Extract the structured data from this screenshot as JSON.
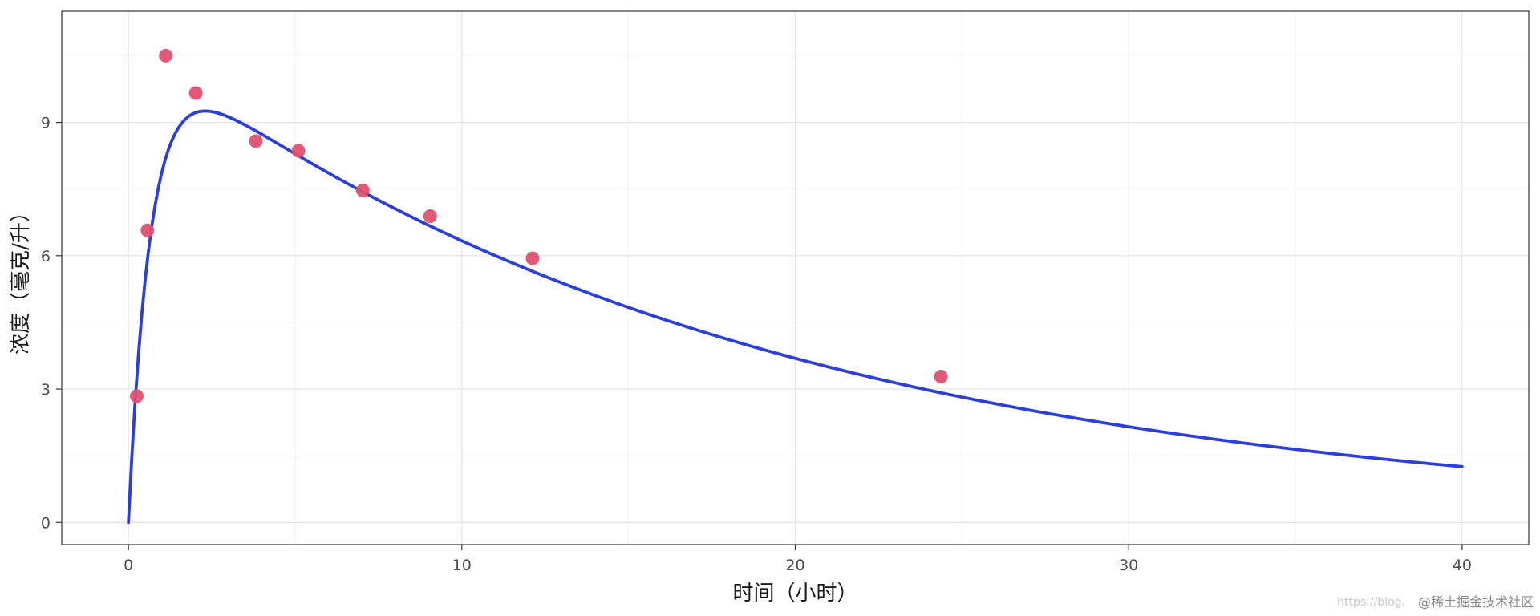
{
  "chart_data": {
    "type": "scatter",
    "title": "",
    "xlabel": "时间（小时）",
    "ylabel": "浓度（毫克/升）",
    "xlim": [
      -2,
      42
    ],
    "ylim": [
      -0.5,
      11.5
    ],
    "x_ticks": [
      0,
      10,
      20,
      30,
      40
    ],
    "y_ticks": [
      0,
      3,
      6,
      9
    ],
    "grid": true,
    "series": [
      {
        "type": "scatter",
        "color": "#e0506e",
        "points": [
          {
            "x": 0.25,
            "y": 2.84
          },
          {
            "x": 0.57,
            "y": 6.57
          },
          {
            "x": 1.12,
            "y": 10.5
          },
          {
            "x": 2.02,
            "y": 9.66
          },
          {
            "x": 3.82,
            "y": 8.58
          },
          {
            "x": 5.1,
            "y": 8.36
          },
          {
            "x": 7.03,
            "y": 7.47
          },
          {
            "x": 9.05,
            "y": 6.89
          },
          {
            "x": 12.12,
            "y": 5.94
          },
          {
            "x": 24.37,
            "y": 3.28
          }
        ]
      },
      {
        "type": "line",
        "color": "#2a3fdc",
        "model": "one-compartment oral absorption fit",
        "params": {
          "A": 10.87,
          "ka": 1.5,
          "ke": 0.054
        },
        "x_range": [
          0,
          40
        ]
      }
    ]
  },
  "watermark": {
    "text": "@稀土掘金技术社区",
    "faint_text": "https://blog."
  }
}
